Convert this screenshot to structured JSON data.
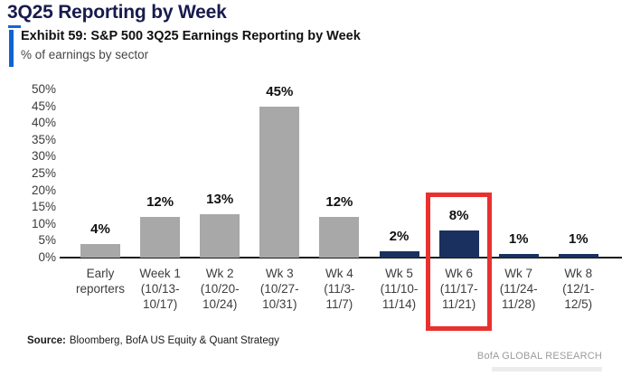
{
  "header": {
    "title": "3Q25 Reporting by Week",
    "exhibit_title": "Exhibit 59: S&P 500 3Q25 Earnings Reporting by Week",
    "exhibit_subtitle": "% of earnings by sector"
  },
  "footer": {
    "source_label": "Source:",
    "source_text": "Bloomberg, BofA US Equity & Quant Strategy",
    "brand": "BofA GLOBAL RESEARCH"
  },
  "colors": {
    "title_navy": "#171b4d",
    "accent_blue": "#1263d0",
    "bar_gray": "#a8a8a8",
    "bar_navy": "#1a3160",
    "highlight_red": "#e8312e",
    "axis_black": "#1c1c1c",
    "brand_gray": "#9b9b9b"
  },
  "chart_data": {
    "type": "bar",
    "title": "Exhibit 59: S&P 500 3Q25 Earnings Reporting by Week",
    "subtitle": "% of earnings by sector",
    "xlabel": "",
    "ylabel": "% of earnings by sector",
    "ylim": [
      0,
      50
    ],
    "ytick_interval": 5,
    "ytick_labels": [
      "0%",
      "5%",
      "10%",
      "15%",
      "20%",
      "25%",
      "30%",
      "35%",
      "40%",
      "45%",
      "50%"
    ],
    "grid": false,
    "legend": null,
    "categories": [
      "Early reporters",
      "Week 1 (10/13-10/17)",
      "Wk 2 (10/20-10/24)",
      "Wk 3 (10/27-10/31)",
      "Wk 4 (11/3-11/7)",
      "Wk 5 (11/10-11/14)",
      "Wk 6 (11/17-11/21)",
      "Wk 7 (11/24-11/28)",
      "Wk 8 (12/1-12/5)"
    ],
    "category_lines": [
      [
        "Early",
        "reporters"
      ],
      [
        "Week 1",
        "(10/13-",
        "10/17)"
      ],
      [
        "Wk 2",
        "(10/20-",
        "10/24)"
      ],
      [
        "Wk 3",
        "(10/27-",
        "10/31)"
      ],
      [
        "Wk 4",
        "(11/3-",
        "11/7)"
      ],
      [
        "Wk 5",
        "(11/10-",
        "11/14)"
      ],
      [
        "Wk 6",
        "(11/17-",
        "11/21)"
      ],
      [
        "Wk 7",
        "(11/24-",
        "11/28)"
      ],
      [
        "Wk 8",
        "(12/1-",
        "12/5)"
      ]
    ],
    "values": [
      4,
      12,
      13,
      45,
      12,
      2,
      8,
      1,
      1
    ],
    "value_labels": [
      "4%",
      "12%",
      "13%",
      "45%",
      "12%",
      "2%",
      "8%",
      "1%",
      "1%"
    ],
    "bar_color_keys": [
      "gray",
      "gray",
      "gray",
      "gray",
      "gray",
      "navy",
      "navy",
      "navy",
      "navy"
    ],
    "highlight": {
      "index": 6,
      "category": "Wk 6 (11/17-11/21)",
      "value": 8,
      "color": "#e8312e"
    }
  }
}
